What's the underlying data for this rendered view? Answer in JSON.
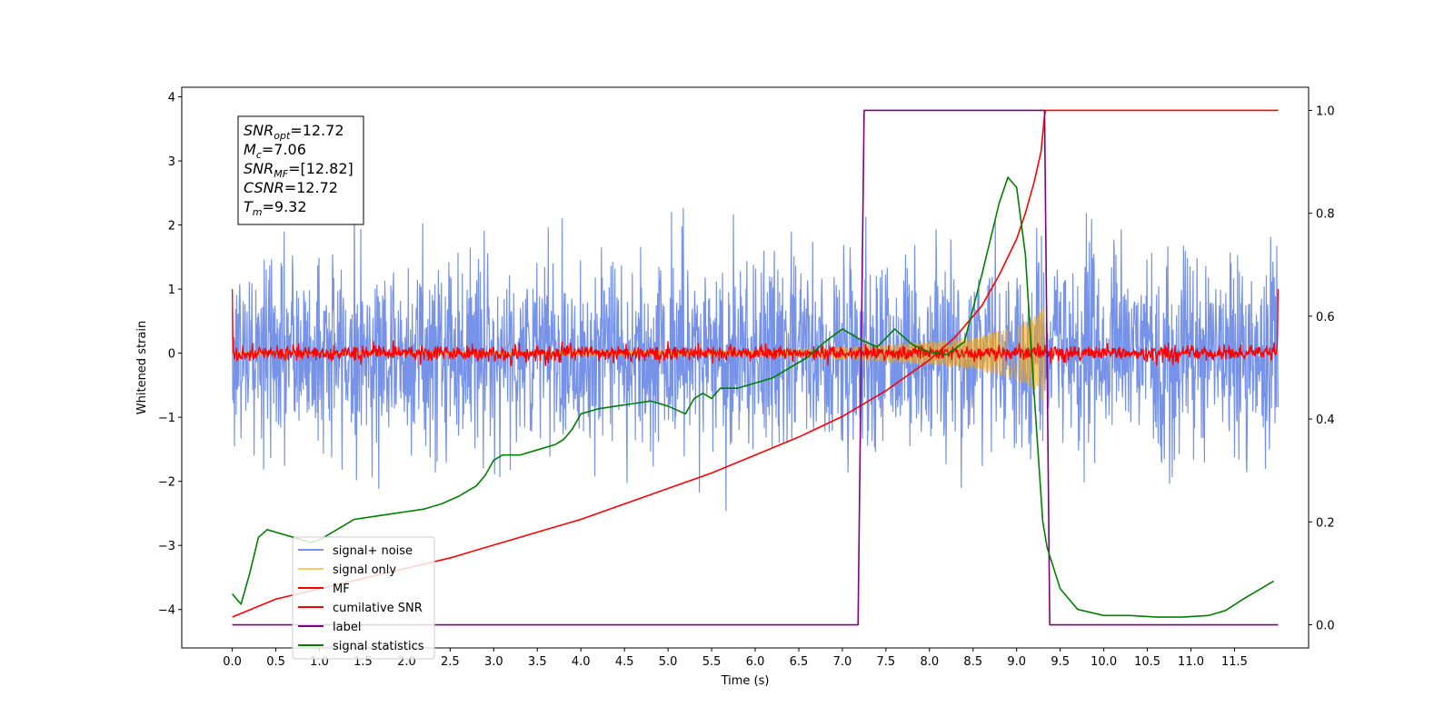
{
  "chart_data": {
    "type": "line",
    "title": "",
    "xlabel": "Time (s)",
    "ylabel_left": "Whitened strain",
    "ylabel_right": "",
    "xlim": [
      -0.58,
      12.35
    ],
    "ylim_left": [
      -4.6,
      4.15
    ],
    "ylim_right": [
      -0.045,
      1.045
    ],
    "x_ticks": [
      0.0,
      0.5,
      1.0,
      1.5,
      2.0,
      2.5,
      3.0,
      3.5,
      4.0,
      4.5,
      5.0,
      5.5,
      6.0,
      6.5,
      7.0,
      7.5,
      8.0,
      8.5,
      9.0,
      9.5,
      10.0,
      10.5,
      11.0,
      11.5
    ],
    "x_tick_labels": [
      "0.0",
      "0.5",
      "1.0",
      "1.5",
      "2.0",
      "2.5",
      "3.0",
      "3.5",
      "4.0",
      "4.5",
      "5.0",
      "5.5",
      "6.0",
      "6.5",
      "7.0",
      "7.5",
      "8.0",
      "8.5",
      "9.0",
      "9.5",
      "10.0",
      "10.5",
      "11.0",
      "11.5"
    ],
    "y_ticks_left": [
      -4,
      -3,
      -2,
      -1,
      0,
      1,
      2,
      3,
      4
    ],
    "y_tick_labels_left": [
      "−4",
      "−3",
      "−2",
      "−1",
      "0",
      "1",
      "2",
      "3",
      "4"
    ],
    "y_ticks_right": [
      0.0,
      0.2,
      0.4,
      0.6,
      0.8,
      1.0
    ],
    "y_tick_labels_right": [
      "0.0",
      "0.2",
      "0.4",
      "0.6",
      "0.8",
      "1.0"
    ],
    "grid": false,
    "legend_position": "lower-left",
    "series": [
      {
        "name": "signal+ noise",
        "axis": "left",
        "color": "#4169e1",
        "kind": "noise",
        "x_range": [
          0.0,
          12.0
        ],
        "std": 0.75,
        "max_abs": 3.75
      },
      {
        "name": "signal only",
        "axis": "left",
        "color": "#ffa500",
        "kind": "chirp",
        "x_range": [
          0.0,
          9.32
        ],
        "envelope": [
          [
            0.0,
            0.01
          ],
          [
            6.0,
            0.05
          ],
          [
            7.0,
            0.1
          ],
          [
            8.0,
            0.18
          ],
          [
            8.5,
            0.25
          ],
          [
            9.0,
            0.42
          ],
          [
            9.25,
            0.6
          ],
          [
            9.32,
            0.8
          ]
        ]
      },
      {
        "name": "MF",
        "axis": "left",
        "color": "#ff0000",
        "kind": "noise",
        "x_range": [
          0.0,
          12.0
        ],
        "std": 0.06,
        "max_abs": 0.2,
        "edge_value": 1.0
      },
      {
        "name": "cumilative SNR",
        "axis": "right",
        "color": "#ff0000",
        "kind": "line",
        "x": [
          0.0,
          0.5,
          1.0,
          1.5,
          2.0,
          2.5,
          3.0,
          3.5,
          4.0,
          4.5,
          5.0,
          5.5,
          6.0,
          6.5,
          7.0,
          7.5,
          8.0,
          8.3,
          8.6,
          8.8,
          9.0,
          9.1,
          9.2,
          9.28,
          9.32,
          9.33,
          12.0
        ],
        "y": [
          0.015,
          0.05,
          0.07,
          0.09,
          0.11,
          0.13,
          0.155,
          0.18,
          0.205,
          0.235,
          0.265,
          0.295,
          0.33,
          0.365,
          0.405,
          0.455,
          0.515,
          0.56,
          0.62,
          0.68,
          0.75,
          0.8,
          0.86,
          0.92,
          0.99,
          1.0,
          1.0
        ]
      },
      {
        "name": "label",
        "axis": "right",
        "color": "#800080",
        "kind": "line",
        "x": [
          0.0,
          7.18,
          7.25,
          9.32,
          9.38,
          12.0
        ],
        "y": [
          0.0,
          0.0,
          1.0,
          1.0,
          0.0,
          0.0
        ]
      },
      {
        "name": "signal statistics",
        "axis": "right",
        "color": "#008000",
        "kind": "line",
        "x": [
          0.0,
          0.1,
          0.2,
          0.3,
          0.4,
          0.5,
          0.7,
          0.9,
          1.0,
          1.2,
          1.4,
          1.6,
          1.8,
          2.0,
          2.2,
          2.4,
          2.6,
          2.8,
          2.9,
          3.0,
          3.1,
          3.3,
          3.5,
          3.7,
          3.8,
          3.9,
          4.0,
          4.1,
          4.2,
          4.4,
          4.6,
          4.8,
          5.0,
          5.2,
          5.3,
          5.4,
          5.5,
          5.6,
          5.8,
          6.0,
          6.2,
          6.4,
          6.6,
          6.8,
          7.0,
          7.2,
          7.4,
          7.6,
          7.8,
          8.0,
          8.2,
          8.4,
          8.6,
          8.8,
          8.9,
          9.0,
          9.1,
          9.2,
          9.3,
          9.35,
          9.5,
          9.7,
          10.0,
          10.3,
          10.6,
          10.9,
          11.2,
          11.4,
          11.6,
          11.8,
          11.95
        ],
        "y": [
          0.06,
          0.04,
          0.1,
          0.17,
          0.185,
          0.18,
          0.17,
          0.16,
          0.165,
          0.185,
          0.205,
          0.21,
          0.215,
          0.22,
          0.225,
          0.235,
          0.25,
          0.27,
          0.29,
          0.32,
          0.33,
          0.33,
          0.34,
          0.35,
          0.36,
          0.38,
          0.41,
          0.415,
          0.42,
          0.425,
          0.43,
          0.435,
          0.425,
          0.41,
          0.44,
          0.45,
          0.44,
          0.46,
          0.46,
          0.47,
          0.48,
          0.5,
          0.52,
          0.55,
          0.575,
          0.555,
          0.54,
          0.575,
          0.545,
          0.53,
          0.525,
          0.55,
          0.68,
          0.82,
          0.87,
          0.85,
          0.72,
          0.45,
          0.2,
          0.15,
          0.07,
          0.03,
          0.018,
          0.018,
          0.015,
          0.015,
          0.018,
          0.028,
          0.05,
          0.07,
          0.085
        ]
      }
    ],
    "annotation": [
      {
        "base": "SNR",
        "sub": "opt",
        "value": "=12.72"
      },
      {
        "base": "M",
        "sub": "c",
        "value": "=7.06"
      },
      {
        "base": "SNR",
        "sub": "MF",
        "value": "=[12.82]"
      },
      {
        "base": "CSNR",
        "sub": "",
        "value": "=12.72"
      },
      {
        "base": "T",
        "sub": "m",
        "value": "=9.32"
      }
    ]
  }
}
